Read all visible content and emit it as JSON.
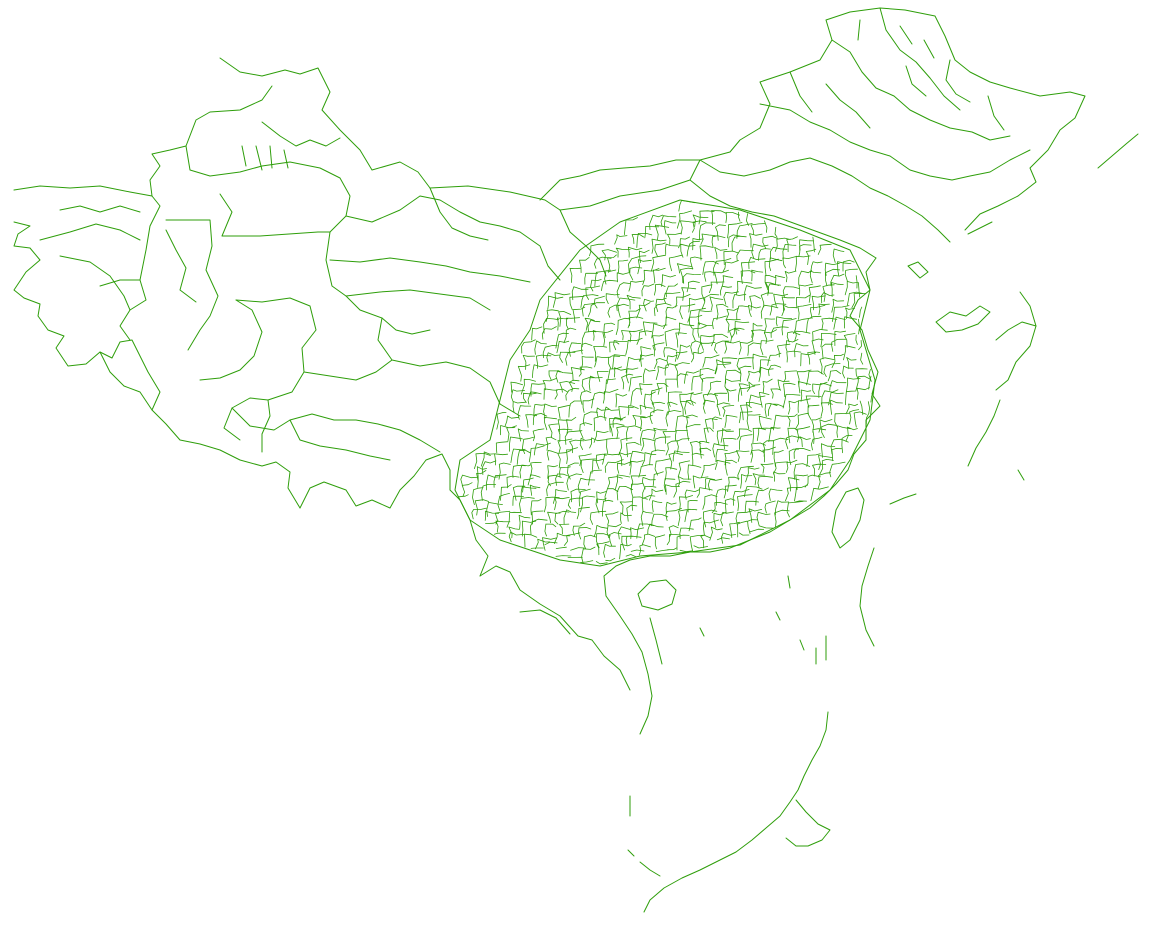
{
  "map": {
    "type": "administrative-boundary-outline",
    "style": {
      "background_color": "#ffffff",
      "line_color": "#2e9e0a",
      "fill": "none"
    },
    "labels": []
  }
}
